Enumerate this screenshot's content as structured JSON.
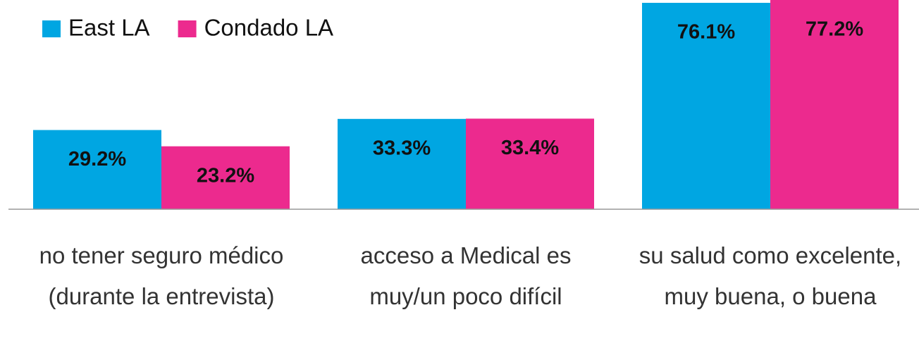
{
  "chart_data": {
    "type": "bar",
    "categories": [
      "no tener seguro médico (durante la entrevista)",
      "acceso a Medical es muy/un poco difícil",
      "su salud como excelente, muy buena, o buena"
    ],
    "series": [
      {
        "name": "East LA",
        "color": "#00a6e2",
        "values": [
          29.2,
          33.3,
          76.1
        ],
        "value_labels": [
          "29.2%",
          "33.3%",
          "76.1%"
        ]
      },
      {
        "name": "Condado LA",
        "color": "#ec2a8e",
        "values": [
          23.2,
          33.4,
          77.2
        ],
        "value_labels": [
          "23.2%",
          "33.4%",
          "77.2%"
        ]
      }
    ],
    "ylim": [
      0,
      80
    ],
    "legend": "top-left"
  }
}
